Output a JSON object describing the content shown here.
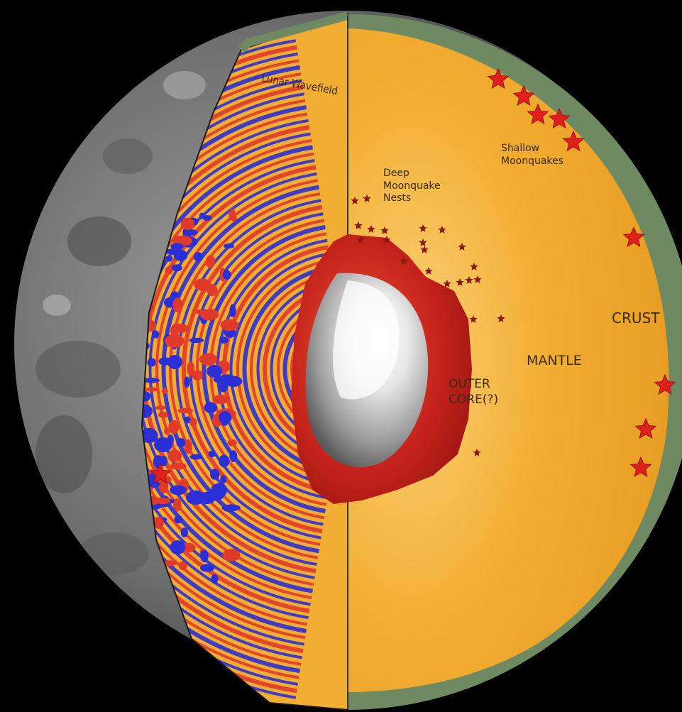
{
  "labels": {
    "lunar_wavefield": "Lunar Wavefield",
    "deep_moonquake_nests": "Deep\nMoonquake\nNests",
    "shallow_moonquakes": "Shallow\nMoonquakes",
    "crust": "CRUST",
    "mantle": "MANTLE",
    "outer_core": "OUTER\nCORE(?)"
  },
  "colors": {
    "background": "#000000",
    "crust": "#6f8a62",
    "mantle": "#f2ae32",
    "outer_core": "#c5231c",
    "inner_core": "#d9d9d9",
    "wave_red": "#e03a2a",
    "wave_blue": "#2b2fd6",
    "moon_surface": "#7d7d7d",
    "quake_star": "#e0201a"
  },
  "icons": {
    "shallow_quake": "star-icon",
    "deep_quake": "star-icon"
  }
}
